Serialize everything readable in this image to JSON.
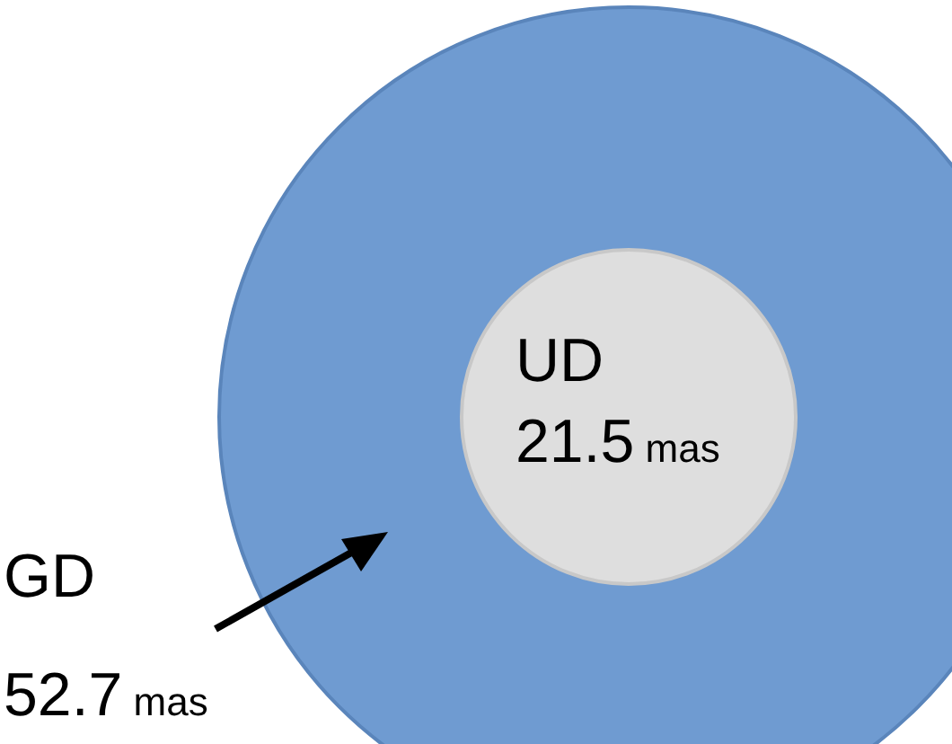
{
  "chart_data": {
    "type": "other",
    "categories": [
      "UD",
      "GD"
    ],
    "values": [
      21.5,
      52.7
    ],
    "colors": [
      "#dedede",
      "#6f9bd1"
    ],
    "value_labels": [
      "21.5 mas",
      "52.7 mas"
    ]
  }
}
